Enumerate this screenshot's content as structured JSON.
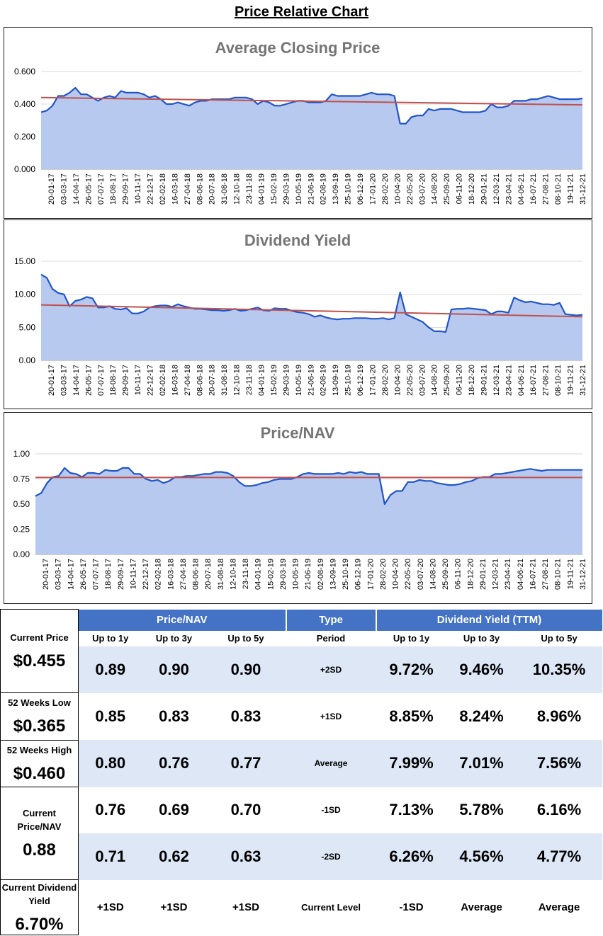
{
  "page_title": "Price Relative Chart",
  "chart_data": [
    {
      "type": "area",
      "title": "Average Closing Price",
      "y_ticks": [
        "0.000",
        "0.200",
        "0.400",
        "0.600"
      ],
      "ylim": [
        0,
        0.6
      ],
      "x_ticks": [
        "20-01-17",
        "03-03-17",
        "14-04-17",
        "26-05-17",
        "07-07-17",
        "18-08-17",
        "29-09-17",
        "10-11-17",
        "22-12-17",
        "02-02-18",
        "16-03-18",
        "27-04-18",
        "08-06-18",
        "20-07-18",
        "31-08-18",
        "12-10-18",
        "23-11-18",
        "04-01-19",
        "15-02-19",
        "29-03-19",
        "10-05-19",
        "21-06-19",
        "02-08-19",
        "13-09-19",
        "25-10-19",
        "06-12-19",
        "17-01-20",
        "28-02-20",
        "10-04-20",
        "22-05-20",
        "03-07-20",
        "14-08-20",
        "25-09-20",
        "06-11-20",
        "18-12-20",
        "29-01-21",
        "12-03-21",
        "23-04-21",
        "04-06-21",
        "16-07-21",
        "27-08-21",
        "08-10-21",
        "19-11-21",
        "31-12-21"
      ],
      "series": [
        {
          "values": [
            0.35,
            0.36,
            0.39,
            0.45,
            0.45,
            0.47,
            0.5,
            0.46,
            0.46,
            0.44,
            0.42,
            0.44,
            0.45,
            0.44,
            0.48,
            0.47,
            0.47,
            0.47,
            0.46,
            0.44,
            0.45,
            0.43,
            0.4,
            0.4,
            0.41,
            0.4,
            0.39,
            0.41,
            0.42,
            0.42,
            0.43,
            0.43,
            0.43,
            0.43,
            0.44,
            0.44,
            0.44,
            0.43,
            0.4,
            0.42,
            0.41,
            0.39,
            0.39,
            0.4,
            0.41,
            0.42,
            0.42,
            0.41,
            0.41,
            0.41,
            0.42,
            0.46,
            0.45,
            0.45,
            0.45,
            0.45,
            0.45,
            0.46,
            0.47,
            0.46,
            0.46,
            0.46,
            0.45,
            0.28,
            0.28,
            0.32,
            0.33,
            0.33,
            0.37,
            0.36,
            0.37,
            0.37,
            0.37,
            0.36,
            0.35,
            0.35,
            0.35,
            0.35,
            0.36,
            0.4,
            0.38,
            0.38,
            0.39,
            0.42,
            0.42,
            0.42,
            0.43,
            0.43,
            0.44,
            0.45,
            0.44,
            0.43,
            0.43,
            0.43,
            0.43,
            0.435
          ]
        }
      ],
      "trend": [
        0.44,
        0.395
      ]
    },
    {
      "type": "area",
      "title": "Dividend Yield",
      "y_ticks": [
        "0.00",
        "5.00",
        "10.00",
        "15.00"
      ],
      "ylim": [
        0,
        15
      ],
      "x_ticks": [
        "20-01-17",
        "03-03-17",
        "14-04-17",
        "26-05-17",
        "07-07-17",
        "18-08-17",
        "29-09-17",
        "10-11-17",
        "22-12-17",
        "02-02-18",
        "16-03-18",
        "27-04-18",
        "08-06-18",
        "20-07-18",
        "31-08-18",
        "12-10-18",
        "23-11-18",
        "04-01-19",
        "15-02-19",
        "29-03-19",
        "10-05-19",
        "21-06-19",
        "02-08-19",
        "13-09-19",
        "25-10-19",
        "06-12-19",
        "17-01-20",
        "28-02-20",
        "10-04-20",
        "22-05-20",
        "03-07-20",
        "14-08-20",
        "25-09-20",
        "06-11-20",
        "18-12-20",
        "29-01-21",
        "12-03-21",
        "23-04-21",
        "04-06-21",
        "16-07-21",
        "27-08-21",
        "08-10-21",
        "19-11-21",
        "31-12-21"
      ],
      "series": [
        {
          "values": [
            13.0,
            12.5,
            10.8,
            10.2,
            10.0,
            8.2,
            9.0,
            9.2,
            9.6,
            9.4,
            8.0,
            8.0,
            8.2,
            7.8,
            7.7,
            7.9,
            7.1,
            7.1,
            7.4,
            8.0,
            8.2,
            8.3,
            8.3,
            8.1,
            8.5,
            8.2,
            8.0,
            7.8,
            7.8,
            7.7,
            7.6,
            7.6,
            7.5,
            7.6,
            7.8,
            7.5,
            7.6,
            7.8,
            8.0,
            7.6,
            7.5,
            7.9,
            7.8,
            7.8,
            7.5,
            7.3,
            7.2,
            7.0,
            6.6,
            6.8,
            6.5,
            6.3,
            6.2,
            6.3,
            6.3,
            6.4,
            6.4,
            6.4,
            6.3,
            6.3,
            6.4,
            6.2,
            6.4,
            10.3,
            7.0,
            6.6,
            6.2,
            5.8,
            5.0,
            4.4,
            4.4,
            4.3,
            7.7,
            7.8,
            7.8,
            7.9,
            7.8,
            7.7,
            7.6,
            7.0,
            7.4,
            7.4,
            7.2,
            9.5,
            9.1,
            8.8,
            8.9,
            8.7,
            8.5,
            8.5,
            8.4,
            8.7,
            7.0,
            6.9,
            6.8,
            6.9
          ]
        }
      ],
      "trend": [
        8.4,
        6.6
      ]
    },
    {
      "type": "area",
      "title": "Price/NAV",
      "y_ticks": [
        "0.00",
        "0.25",
        "0.50",
        "0.75",
        "1.00"
      ],
      "ylim": [
        0,
        1
      ],
      "x_ticks": [
        "20-01-17",
        "03-03-17",
        "14-04-17",
        "26-05-17",
        "07-07-17",
        "18-08-17",
        "29-09-17",
        "10-11-17",
        "22-12-17",
        "02-02-18",
        "16-03-18",
        "27-04-18",
        "08-06-18",
        "20-07-18",
        "31-08-18",
        "12-10-18",
        "23-11-18",
        "04-01-19",
        "15-02-19",
        "29-03-19",
        "10-05-19",
        "21-06-19",
        "02-08-19",
        "13-09-19",
        "25-10-19",
        "06-12-19",
        "17-01-20",
        "28-02-20",
        "10-04-20",
        "22-05-20",
        "03-07-20",
        "14-08-20",
        "25-09-20",
        "06-11-20",
        "18-12-20",
        "29-01-21",
        "12-03-21",
        "23-04-21",
        "04-06-21",
        "16-07-21",
        "27-08-21",
        "08-10-21",
        "19-11-21",
        "31-12-21"
      ],
      "series": [
        {
          "values": [
            0.58,
            0.61,
            0.71,
            0.77,
            0.78,
            0.86,
            0.81,
            0.8,
            0.77,
            0.81,
            0.81,
            0.8,
            0.84,
            0.83,
            0.83,
            0.86,
            0.86,
            0.8,
            0.8,
            0.75,
            0.73,
            0.74,
            0.71,
            0.73,
            0.77,
            0.77,
            0.78,
            0.78,
            0.79,
            0.8,
            0.8,
            0.82,
            0.82,
            0.81,
            0.78,
            0.72,
            0.68,
            0.68,
            0.69,
            0.71,
            0.72,
            0.74,
            0.75,
            0.75,
            0.75,
            0.77,
            0.8,
            0.81,
            0.8,
            0.8,
            0.8,
            0.8,
            0.81,
            0.8,
            0.82,
            0.81,
            0.82,
            0.8,
            0.8,
            0.8,
            0.5,
            0.59,
            0.63,
            0.63,
            0.72,
            0.72,
            0.74,
            0.73,
            0.73,
            0.71,
            0.7,
            0.69,
            0.69,
            0.7,
            0.72,
            0.73,
            0.76,
            0.77,
            0.77,
            0.8,
            0.8,
            0.81,
            0.82,
            0.83,
            0.84,
            0.85,
            0.84,
            0.83,
            0.84,
            0.84,
            0.84,
            0.84,
            0.84,
            0.84,
            0.84
          ]
        }
      ],
      "trend": [
        0.765,
        0.765
      ]
    }
  ],
  "stats": {
    "left": [
      {
        "label": "Current Price",
        "value": "$0.455"
      },
      {
        "label": "52 Weeks Low",
        "value": "$0.365"
      },
      {
        "label": "52 Weeks High",
        "value": "$0.460"
      },
      {
        "label": "Current Price/NAV",
        "value": "0.88"
      },
      {
        "label": "Current Dividend Yield",
        "value": "6.70%"
      }
    ],
    "headers": {
      "pnav": "Price/NAV",
      "type": "Type",
      "dy": "Dividend Yield (TTM)"
    },
    "sub": {
      "c1": "Up to 1y",
      "c2": "Up to 3y",
      "c3": "Up to 5y",
      "type": "Period",
      "d1": "Up to 1y",
      "d2": "Up to 3y",
      "d3": "Up to 5y"
    },
    "rows": [
      {
        "p1": "0.89",
        "p2": "0.90",
        "p3": "0.90",
        "type": "+2SD",
        "d1": "9.72%",
        "d2": "9.46%",
        "d3": "10.35%"
      },
      {
        "p1": "0.85",
        "p2": "0.83",
        "p3": "0.83",
        "type": "+1SD",
        "d1": "8.85%",
        "d2": "8.24%",
        "d3": "8.96%"
      },
      {
        "p1": "0.80",
        "p2": "0.76",
        "p3": "0.77",
        "type": "Average",
        "d1": "7.99%",
        "d2": "7.01%",
        "d3": "7.56%"
      },
      {
        "p1": "0.76",
        "p2": "0.69",
        "p3": "0.70",
        "type": "-1SD",
        "d1": "7.13%",
        "d2": "5.78%",
        "d3": "6.16%"
      },
      {
        "p1": "0.71",
        "p2": "0.62",
        "p3": "0.63",
        "type": "-2SD",
        "d1": "6.26%",
        "d2": "4.56%",
        "d3": "4.77%"
      }
    ],
    "current": {
      "p1": "+1SD",
      "p2": "+1SD",
      "p3": "+1SD",
      "type": "Current Level",
      "d1": "-1SD",
      "d2": "Average",
      "d3": "Average"
    }
  },
  "colors": {
    "header_bg": "#4472c4",
    "band_bg": "#dde7f6",
    "area_fill": "#b7c9ee",
    "line": "#2155c9",
    "trend": "#c0504d",
    "grid": "#d9d9d9"
  }
}
